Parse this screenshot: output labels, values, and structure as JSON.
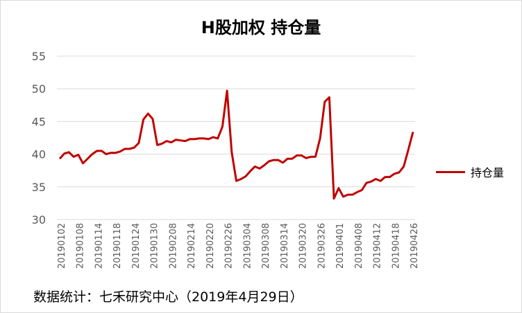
{
  "chart_data": {
    "type": "line",
    "title": "H股加权  持仓量",
    "xlabel": "",
    "ylabel": "",
    "ylim": [
      30,
      55
    ],
    "y_ticks": [
      30,
      35,
      40,
      45,
      50,
      55
    ],
    "grid": true,
    "legend_position": "right",
    "line_color": "#c00000",
    "x_tick_labels": [
      "20190102",
      "20190108",
      "20190114",
      "20190118",
      "20190124",
      "20190130",
      "20190208",
      "20190214",
      "20190220",
      "20190226",
      "20190304",
      "20190308",
      "20190314",
      "20190320",
      "20190326",
      "20190401",
      "20190408",
      "20190412",
      "20190418",
      "20190426"
    ],
    "series": [
      {
        "name": "持仓量",
        "values": [
          39.3,
          40.1,
          40.3,
          39.6,
          39.9,
          38.6,
          39.3,
          40.0,
          40.5,
          40.5,
          40.0,
          40.2,
          40.2,
          40.4,
          40.8,
          40.8,
          41.0,
          41.7,
          45.3,
          46.2,
          45.4,
          41.4,
          41.6,
          42.0,
          41.8,
          42.2,
          42.1,
          42.0,
          42.3,
          42.3,
          42.4,
          42.4,
          42.3,
          42.6,
          42.4,
          44.2,
          49.7,
          40.3,
          35.9,
          36.2,
          36.6,
          37.4,
          38.1,
          37.8,
          38.3,
          38.9,
          39.1,
          39.1,
          38.7,
          39.3,
          39.3,
          39.8,
          39.8,
          39.4,
          39.6,
          39.6,
          42.4,
          48.0,
          48.7,
          33.2,
          34.8,
          33.5,
          33.8,
          33.8,
          34.2,
          34.5,
          35.6,
          35.8,
          36.2,
          35.9,
          36.5,
          36.5,
          37.0,
          37.2,
          38.1,
          40.7,
          43.4
        ]
      }
    ]
  },
  "source_note": "数据统计：七禾研究中心（2019年4月29日）"
}
